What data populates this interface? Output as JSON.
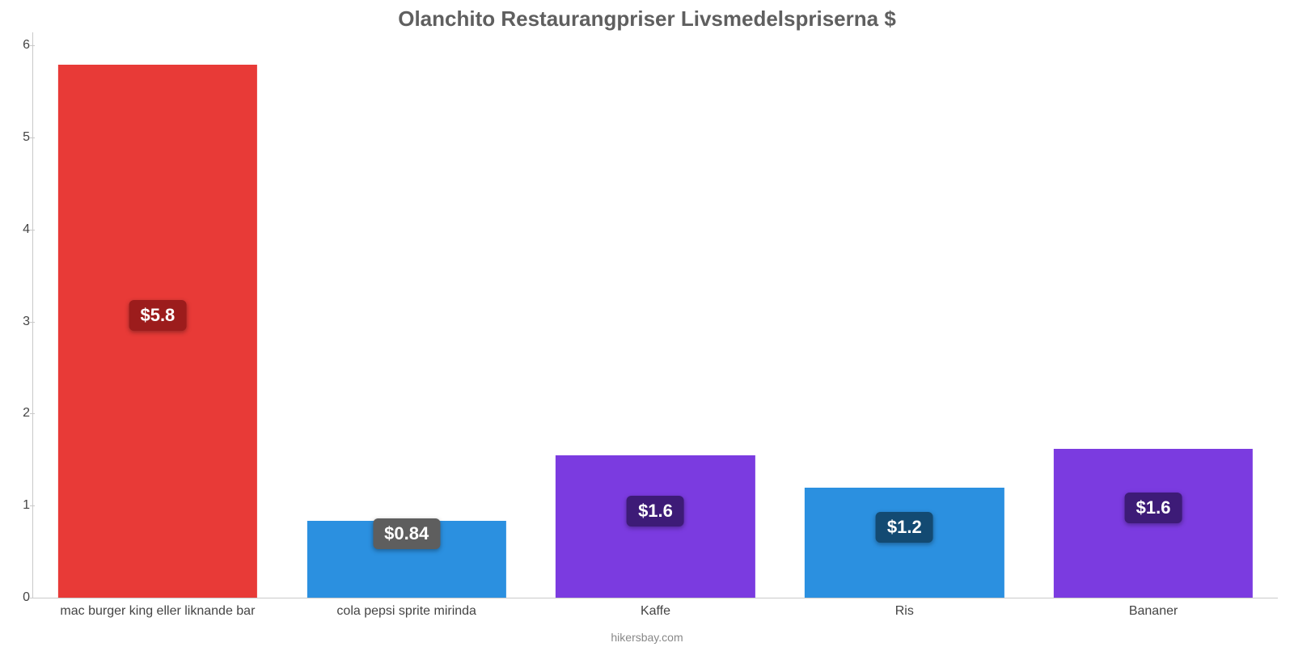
{
  "chart": {
    "type": "bar",
    "title": "Olanchito Restaurangpriser Livsmedelspriserna $",
    "title_fontsize": 26,
    "title_color": "#5f5f5f",
    "background_color": "#ffffff",
    "axis_color": "#c9c9c9",
    "tick_label_color": "#444444",
    "tick_fontsize": 16,
    "xlabel_fontsize": 16,
    "xlabel_color": "#444444",
    "credit": "hikersbay.com",
    "credit_color": "#888888",
    "credit_fontsize": 14,
    "ylim": [
      0,
      6.15
    ],
    "yticks": [
      0,
      1,
      2,
      3,
      4,
      5,
      6
    ],
    "bar_width_pct": 80,
    "badge_fontsize": 22,
    "badge_text_color": "#ffffff",
    "categories": [
      {
        "label": "mac burger king eller liknande bar",
        "value": 5.8,
        "value_label": "$5.8",
        "bar_color": "#e83a37",
        "badge_color": "#9c1c1c"
      },
      {
        "label": "cola pepsi sprite mirinda",
        "value": 0.84,
        "value_label": "$0.84",
        "bar_color": "#2b90e0",
        "badge_color": "#5e5e5e"
      },
      {
        "label": "Kaffe",
        "value": 1.55,
        "value_label": "$1.6",
        "bar_color": "#7b3be0",
        "badge_color": "#3d1b77"
      },
      {
        "label": "Ris",
        "value": 1.2,
        "value_label": "$1.2",
        "bar_color": "#2b90e0",
        "badge_color": "#134a72"
      },
      {
        "label": "Bananer",
        "value": 1.62,
        "value_label": "$1.6",
        "bar_color": "#7b3be0",
        "badge_color": "#3d1b77"
      }
    ]
  }
}
